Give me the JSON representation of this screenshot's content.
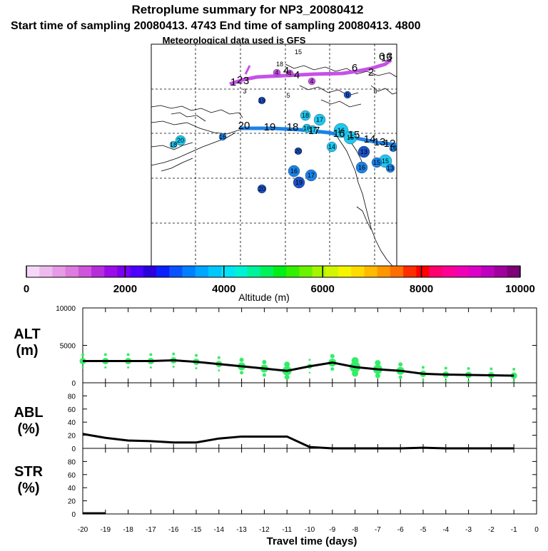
{
  "header": {
    "title": "Retroplume summary for NP3_20080412",
    "subtitle": "Start time of sampling 20080413.  4743     End time of sampling 20080413.  4800",
    "met_note": "Meteorological data used is GFS"
  },
  "colorbar": {
    "label": "Altitude (m)",
    "tick_labels": [
      "0",
      "2000",
      "4000",
      "6000",
      "8000",
      "10000"
    ],
    "range": [
      0,
      10000
    ],
    "colors": [
      "#f6d8f6",
      "#eebbee",
      "#e59be5",
      "#dc7cdc",
      "#cf55dc",
      "#b52edc",
      "#9d0ce8",
      "#7a00ee",
      "#4b00ff",
      "#2c00dc",
      "#0b1fff",
      "#0b52ff",
      "#0080ff",
      "#00a6ff",
      "#00c8ff",
      "#00e4f5",
      "#00f2d6",
      "#00f39a",
      "#00f25a",
      "#00ef17",
      "#33f000",
      "#6bf200",
      "#a6f500",
      "#d2f500",
      "#f5f500",
      "#ffdc00",
      "#ffba00",
      "#ff9600",
      "#ff6e00",
      "#ff2d00",
      "#ff0000",
      "#ff006e",
      "#ff0096",
      "#f000b4",
      "#dc00c8",
      "#be00be",
      "#a0009d",
      "#7d0078"
    ]
  },
  "map": {
    "plumes": [
      {
        "name": "upper",
        "color": "#c651e8",
        "labels": [
          "1",
          "2",
          "3",
          "4",
          "4",
          "5",
          "6",
          "6",
          "1",
          "2",
          "3"
        ]
      },
      {
        "name": "middle",
        "color": "#1a82e8",
        "labels": [
          "20",
          "19",
          "18",
          "17",
          "16",
          "15",
          "14",
          "13",
          "12"
        ]
      }
    ],
    "dots": [
      {
        "text": "15",
        "color": "#ffffff"
      },
      {
        "text": "18",
        "color": "#ffffff"
      },
      {
        "text": "4",
        "color": "#c651e8"
      },
      {
        "text": "4",
        "color": "#c651e8"
      },
      {
        "text": "4",
        "color": "#c651e8"
      },
      {
        "text": "3",
        "color": "#ffffff"
      },
      {
        "text": "5",
        "color": "#ffffff"
      },
      {
        "text": "5",
        "color": "#ffffff"
      },
      {
        "text": "19",
        "color": "#1a53c9"
      },
      {
        "text": "6",
        "color": "#1a53c9"
      },
      {
        "text": "18",
        "color": "#1ec8f0"
      },
      {
        "text": "17",
        "color": "#1ec8f0"
      },
      {
        "text": "16",
        "color": "#1ec8f0"
      },
      {
        "text": "17",
        "color": "#1ec8f0"
      },
      {
        "text": "16",
        "color": "#1ec8f0"
      },
      {
        "text": "15",
        "color": "#1ec8f0"
      },
      {
        "text": "15",
        "color": "#1ec8f0"
      },
      {
        "text": "14",
        "color": "#1ec8f0"
      },
      {
        "text": "13",
        "color": "#1a53c9"
      },
      {
        "text": "20",
        "color": "#1ec8f0"
      },
      {
        "text": "18",
        "color": "#1ec8f0"
      },
      {
        "text": "16",
        "color": "#1a82e8"
      },
      {
        "text": "20",
        "color": "#1a53c9"
      },
      {
        "text": "16",
        "color": "#1a82e8"
      },
      {
        "text": "16",
        "color": "#1a82e8"
      },
      {
        "text": "17",
        "color": "#1a82e8"
      },
      {
        "text": "19",
        "color": "#1a53c9"
      },
      {
        "text": "20",
        "color": "#1a53c9"
      },
      {
        "text": "15",
        "color": "#1a82e8"
      },
      {
        "text": "13",
        "color": "#1a82e8"
      },
      {
        "text": "16",
        "color": "#1a82e8"
      }
    ]
  },
  "chart_data": [
    {
      "type": "line",
      "panel": "ALT",
      "ylabel_top": "ALT",
      "ylabel_bottom": "(m)",
      "x": [
        -20,
        -19,
        -18,
        -17,
        -16,
        -15,
        -14,
        -13,
        -12,
        -11,
        -10,
        -9,
        -8,
        -7,
        -6,
        -5,
        -4,
        -3,
        -2,
        -1
      ],
      "values": [
        2900,
        2900,
        2900,
        2900,
        3000,
        2800,
        2500,
        2200,
        1900,
        1600,
        2200,
        2700,
        2100,
        1800,
        1600,
        1200,
        1100,
        1050,
        1000,
        950
      ],
      "ylim": [
        0,
        10000
      ],
      "y_ticks": [
        0,
        5000,
        10000
      ],
      "scatter_sizes": [
        3,
        3,
        3,
        3,
        3,
        3,
        3,
        4,
        4,
        5,
        2,
        4,
        6,
        5,
        4,
        3,
        3,
        3,
        3,
        3
      ],
      "scatter_color": "#33ee66"
    },
    {
      "type": "line",
      "panel": "ABL",
      "ylabel_top": "ABL",
      "ylabel_bottom": "(%)",
      "x": [
        -20,
        -19,
        -18,
        -17,
        -16,
        -15,
        -14,
        -13,
        -12,
        -11,
        -10,
        -9,
        -8,
        -7,
        -6,
        -5,
        -4,
        -3,
        -2,
        -1
      ],
      "values": [
        22,
        16,
        12,
        11,
        9,
        9,
        15,
        18,
        18,
        18,
        2,
        0,
        0,
        0,
        0,
        1,
        0,
        0,
        0,
        0
      ],
      "ylim": [
        0,
        100
      ],
      "y_ticks": [
        0,
        20,
        40,
        60,
        80
      ]
    },
    {
      "type": "line",
      "panel": "STR",
      "ylabel_top": "STR",
      "ylabel_bottom": "(%)",
      "x": [
        -20,
        -19
      ],
      "values": [
        1,
        1
      ],
      "ylim": [
        0,
        100
      ],
      "y_ticks": [
        0,
        20,
        40,
        60,
        80
      ]
    }
  ],
  "x_axis": {
    "label": "Travel time (days)",
    "tick_labels": [
      "-20",
      "-19",
      "-18",
      "-17",
      "-16",
      "-15",
      "-14",
      "-13",
      "-12",
      "-11",
      "-10",
      "-9",
      "-8",
      "-7",
      "-6",
      "-5",
      "-4",
      "-3",
      "-2",
      "-1",
      "0"
    ],
    "xlim": [
      -20,
      0
    ]
  }
}
